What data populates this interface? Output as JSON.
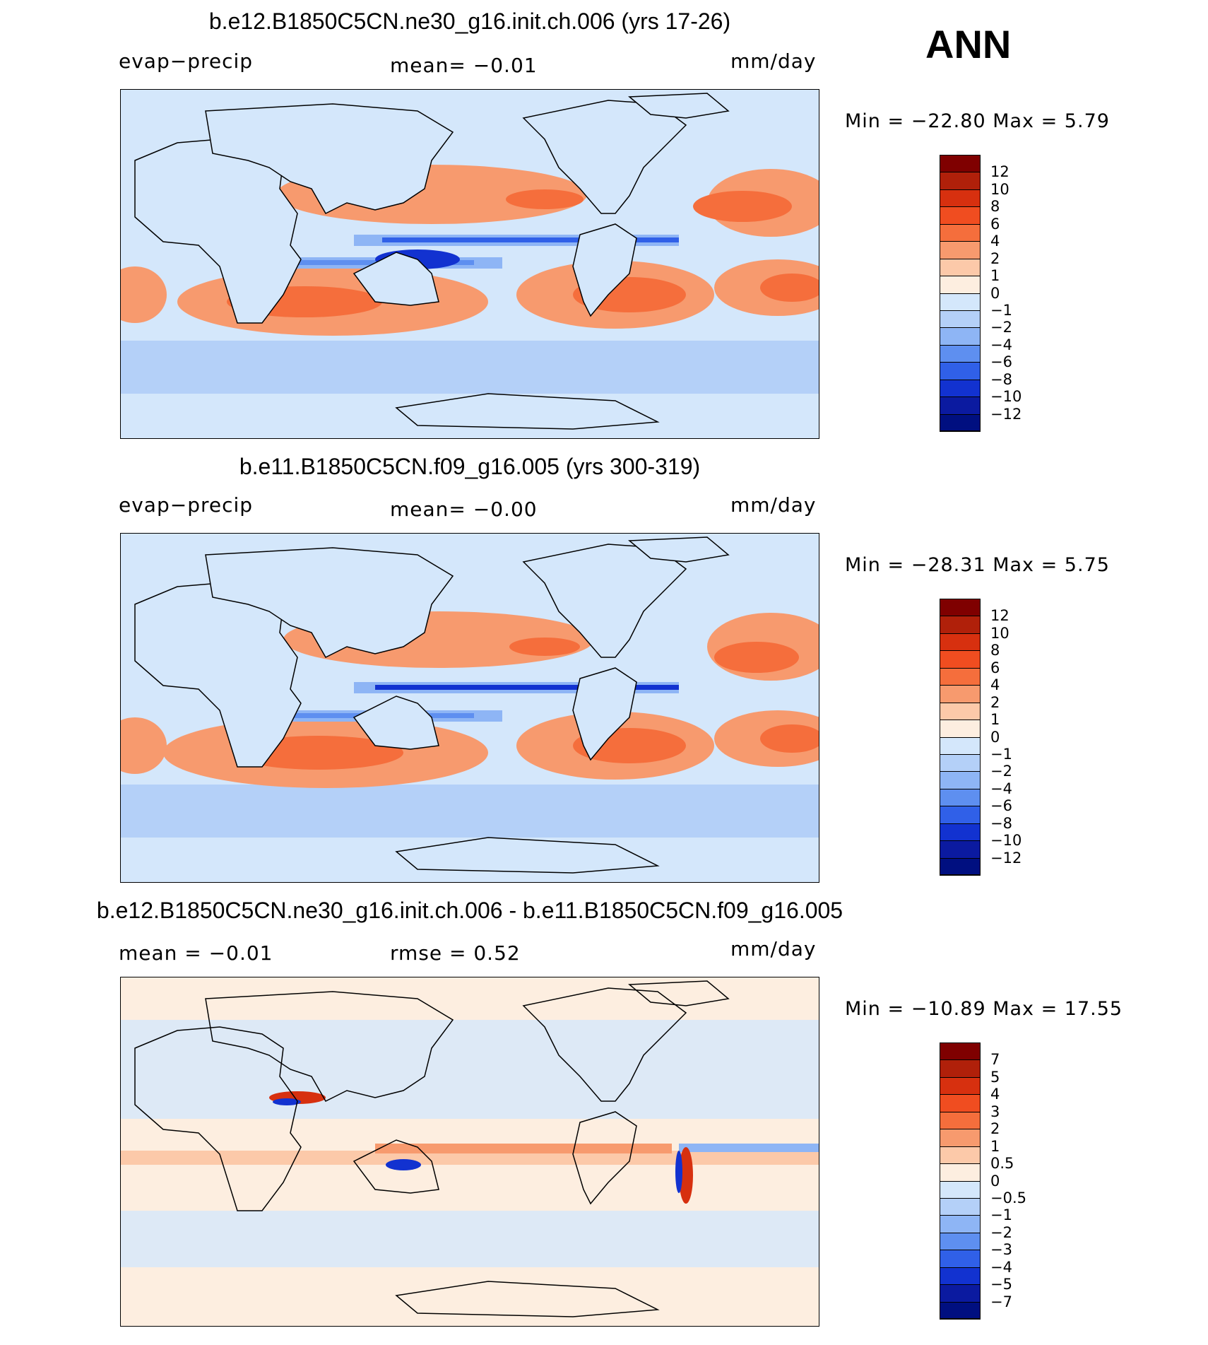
{
  "season": "ANN",
  "panels": [
    {
      "title": "b.e12.B1850C5CN.ne30_g16.init.ch.006 (yrs 17-26)",
      "left_label": "evap−precip",
      "center_label": "mean=   −0.01",
      "right_label": "mm/day",
      "stats": "Min  =  −22.80  Max  =     5.79",
      "levels": [
        "12",
        "10",
        "8",
        "6",
        "4",
        "2",
        "1",
        "0",
        "−1",
        "−2",
        "−4",
        "−6",
        "−8",
        "−10",
        "−12"
      ],
      "colors": [
        "#7f0000",
        "#b0200a",
        "#d7300f",
        "#f04d20",
        "#f56e3c",
        "#f79a6e",
        "#fcc9a9",
        "#fdeee0",
        "#d4e7fb",
        "#b4d0f8",
        "#8eb5f5",
        "#5e8ff0",
        "#3060e8",
        "#1232d0",
        "#0b1aa0",
        "#000f80"
      ]
    },
    {
      "title": "b.e11.B1850C5CN.f09_g16.005 (yrs 300-319)",
      "left_label": "evap−precip",
      "center_label": "mean=   −0.00",
      "right_label": "mm/day",
      "stats": "Min  =  −28.31  Max  =     5.75",
      "levels": [
        "12",
        "10",
        "8",
        "6",
        "4",
        "2",
        "1",
        "0",
        "−1",
        "−2",
        "−4",
        "−6",
        "−8",
        "−10",
        "−12"
      ],
      "colors": [
        "#7f0000",
        "#b0200a",
        "#d7300f",
        "#f04d20",
        "#f56e3c",
        "#f79a6e",
        "#fcc9a9",
        "#fdeee0",
        "#d4e7fb",
        "#b4d0f8",
        "#8eb5f5",
        "#5e8ff0",
        "#3060e8",
        "#1232d0",
        "#0b1aa0",
        "#000f80"
      ]
    },
    {
      "title": "b.e12.B1850C5CN.ne30_g16.init.ch.006 - b.e11.B1850C5CN.f09_g16.005",
      "left_label": "mean =   −0.01",
      "center_label": "rmse =    0.52",
      "right_label": "mm/day",
      "stats": "Min  =  −10.89  Max  =   17.55",
      "levels": [
        "7",
        "5",
        "4",
        "3",
        "2",
        "1",
        "0.5",
        "0",
        "−0.5",
        "−1",
        "−2",
        "−3",
        "−4",
        "−5",
        "−7"
      ],
      "colors": [
        "#7f0000",
        "#b0200a",
        "#d7300f",
        "#f04d20",
        "#f56e3c",
        "#f79a6e",
        "#fcc9a9",
        "#fdeee0",
        "#d4e7fb",
        "#b4d0f8",
        "#8eb5f5",
        "#5e8ff0",
        "#3060e8",
        "#1232d0",
        "#0b1aa0",
        "#000f80"
      ]
    }
  ]
}
